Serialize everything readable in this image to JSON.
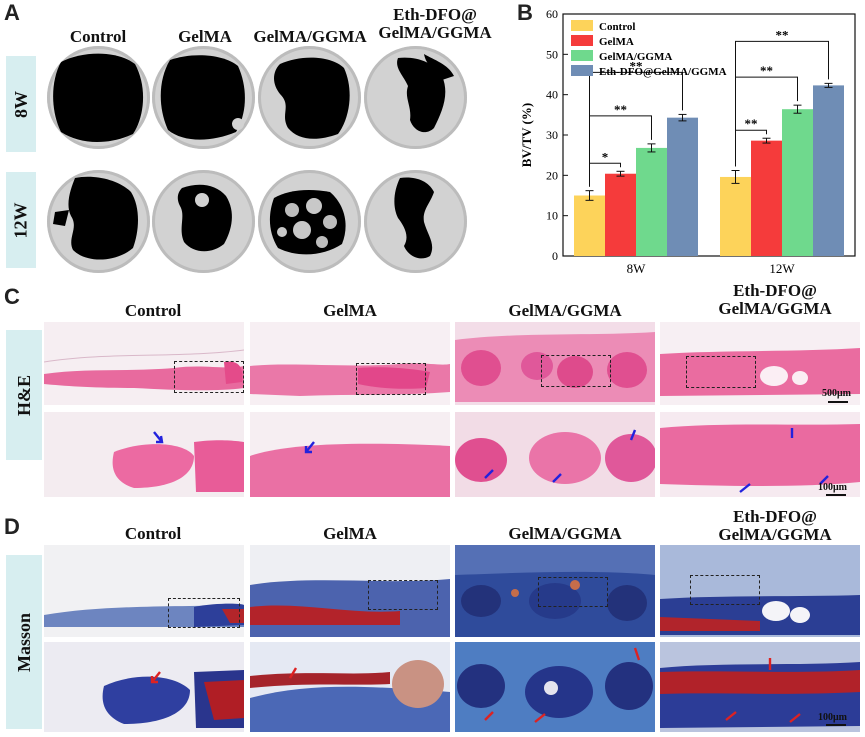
{
  "panels": {
    "a": {
      "letter": "A",
      "columns": [
        "Control",
        "GelMA",
        "GelMA/GGMA",
        [
          "Eth-DFO@",
          "GelMA/GGMA"
        ]
      ],
      "rows": [
        "8W",
        "12W"
      ]
    },
    "c": {
      "letter": "C",
      "columns": [
        "Control",
        "GelMA",
        "GelMA/GGMA",
        [
          "Eth-DFO@",
          "GelMA/GGMA"
        ]
      ],
      "row_label": "H&E",
      "scale_low": "500μm",
      "scale_high": "100μm"
    },
    "d": {
      "letter": "D",
      "columns": [
        "Control",
        "GelMA",
        "GelMA/GGMA",
        [
          "Eth-DFO@",
          "GelMA/GGMA"
        ]
      ],
      "row_label": "Masson",
      "scale_high": "100μm"
    }
  },
  "chart_data": {
    "letter": "B",
    "type": "bar",
    "ylabel": "BV/TV (%)",
    "ylim": [
      0,
      60
    ],
    "yticks": [
      0,
      10,
      20,
      30,
      40,
      50,
      60
    ],
    "categories": [
      "8W",
      "12W"
    ],
    "legend_position": "top-left",
    "series": [
      {
        "name": "Control",
        "color": "#fdd35a",
        "values": [
          15.0,
          19.6
        ],
        "errors": [
          1.2,
          1.6
        ]
      },
      {
        "name": "GelMA",
        "color": "#f53b3b",
        "values": [
          20.4,
          28.6
        ],
        "errors": [
          0.6,
          0.6
        ]
      },
      {
        "name": "GelMA/GGMA",
        "color": "#6fd98d",
        "values": [
          26.8,
          36.4
        ],
        "errors": [
          1.0,
          1.0
        ]
      },
      {
        "name": "Eth-DFO@GelMA/GGMA",
        "color": "#6f8db5",
        "values": [
          34.3,
          42.3
        ],
        "errors": [
          0.8,
          0.5
        ]
      }
    ],
    "significance": {
      "8W": [
        "*",
        "**",
        "**"
      ],
      "12W": [
        "**",
        "**",
        "**"
      ]
    }
  }
}
